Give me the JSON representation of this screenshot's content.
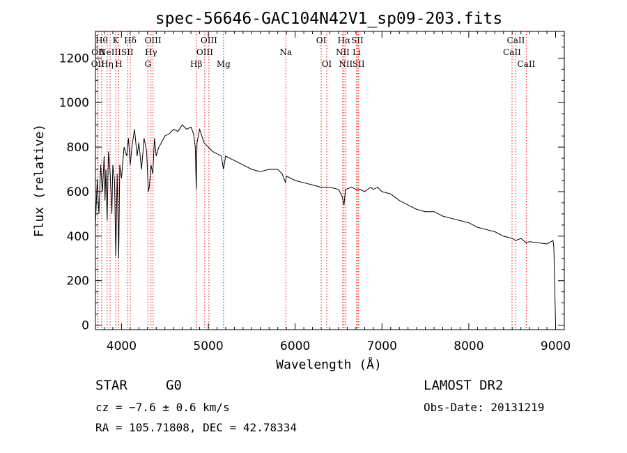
{
  "chart_data": {
    "type": "line",
    "title": "spec-56646-GAC104N42V1_sp09-203.fits",
    "xlabel": "Wavelength (Å)",
    "ylabel": "Flux (relative)",
    "xlim": [
      3700,
      9100
    ],
    "ylim": [
      -20,
      1320
    ],
    "xticks": [
      4000,
      5000,
      6000,
      7000,
      8000,
      9000
    ],
    "yticks": [
      0,
      200,
      400,
      600,
      800,
      1000,
      1200
    ],
    "grid": false,
    "series": [
      {
        "x": [
          3700,
          3720,
          3740,
          3760,
          3780,
          3800,
          3810,
          3820,
          3835,
          3850,
          3870,
          3889,
          3900,
          3920,
          3934,
          3950,
          3968,
          3980,
          4000,
          4030,
          4060,
          4080,
          4101,
          4120,
          4150,
          4180,
          4200,
          4230,
          4260,
          4290,
          4310,
          4320,
          4340,
          4360,
          4380,
          4400,
          4430,
          4460,
          4500,
          4550,
          4600,
          4650,
          4700,
          4750,
          4800,
          4830,
          4850,
          4861,
          4870,
          4900,
          4950,
          5000,
          5050,
          5100,
          5150,
          5175,
          5200,
          5300,
          5400,
          5500,
          5600,
          5700,
          5800,
          5850,
          5890,
          5900,
          6000,
          6100,
          6200,
          6300,
          6400,
          6500,
          6540,
          6563,
          6580,
          6650,
          6700,
          6750,
          6800,
          6870,
          6900,
          6950,
          7000,
          7100,
          7200,
          7300,
          7400,
          7500,
          7600,
          7700,
          7800,
          7900,
          8000,
          8100,
          8200,
          8300,
          8400,
          8498,
          8542,
          8600,
          8662,
          8700,
          8800,
          8900,
          8970,
          8980,
          8990,
          9000
        ],
        "y": [
          450,
          650,
          500,
          720,
          600,
          760,
          560,
          700,
          470,
          780,
          680,
          500,
          720,
          650,
          310,
          680,
          300,
          720,
          660,
          800,
          760,
          840,
          720,
          800,
          880,
          760,
          820,
          700,
          840,
          780,
          600,
          620,
          720,
          680,
          840,
          760,
          800,
          820,
          850,
          860,
          880,
          870,
          900,
          880,
          890,
          860,
          800,
          610,
          820,
          880,
          820,
          800,
          780,
          770,
          760,
          700,
          760,
          740,
          720,
          700,
          690,
          700,
          700,
          680,
          640,
          670,
          650,
          640,
          630,
          620,
          620,
          610,
          580,
          540,
          610,
          620,
          610,
          610,
          600,
          620,
          610,
          620,
          600,
          590,
          560,
          540,
          520,
          510,
          510,
          490,
          480,
          470,
          460,
          440,
          430,
          420,
          400,
          390,
          380,
          390,
          370,
          375,
          370,
          365,
          380,
          350,
          170,
          0
        ]
      }
    ],
    "line_markers": [
      {
        "wl": 3727,
        "label": "OII",
        "row": 2
      },
      {
        "wl": 3730,
        "label": "OII",
        "row": 1
      },
      {
        "wl": 3771,
        "label": "Hθ",
        "row": 0
      },
      {
        "wl": 3835,
        "label": "Hη",
        "row": 2
      },
      {
        "wl": 3869,
        "label": "NeIII",
        "row": 1
      },
      {
        "wl": 3934,
        "label": "K",
        "row": 0
      },
      {
        "wl": 3968,
        "label": "H",
        "row": 2
      },
      {
        "wl": 4068,
        "label": "SII",
        "row": 1
      },
      {
        "wl": 4101,
        "label": "Hδ",
        "row": 0
      },
      {
        "wl": 4304,
        "label": "G",
        "row": 2
      },
      {
        "wl": 4340,
        "label": "Hγ",
        "row": 1
      },
      {
        "wl": 4363,
        "label": "OIII",
        "row": 0
      },
      {
        "wl": 4861,
        "label": "Hβ",
        "row": 2
      },
      {
        "wl": 4959,
        "label": "OIII",
        "row": 1
      },
      {
        "wl": 5007,
        "label": "OIII",
        "row": 0
      },
      {
        "wl": 5175,
        "label": "Mg",
        "row": 2
      },
      {
        "wl": 5893,
        "label": "Na",
        "row": 1
      },
      {
        "wl": 6300,
        "label": "OI",
        "row": 0
      },
      {
        "wl": 6364,
        "label": "OI",
        "row": 2
      },
      {
        "wl": 6548,
        "label": "NII",
        "row": 1
      },
      {
        "wl": 6563,
        "label": "Hα",
        "row": 0
      },
      {
        "wl": 6583,
        "label": "NII",
        "row": 2
      },
      {
        "wl": 6708,
        "label": "Li",
        "row": 1
      },
      {
        "wl": 6716,
        "label": "SII",
        "row": 0
      },
      {
        "wl": 6731,
        "label": "SII",
        "row": 2
      },
      {
        "wl": 8498,
        "label": "CaII",
        "row": 1
      },
      {
        "wl": 8542,
        "label": "CaII",
        "row": 0
      },
      {
        "wl": 8662,
        "label": "CaII",
        "row": 2
      }
    ]
  },
  "info": {
    "object_type": "STAR",
    "subclass": "G0",
    "cz": "cz = −7.6 ± 0.6 km/s",
    "coords": "RA = 105.71808, DEC =  42.78334",
    "survey": "LAMOST DR2",
    "obs_date": "Obs-Date: 20131219"
  },
  "colors": {
    "spectrum": "#000000",
    "line_marker": "#ff0000",
    "axes": "#000000"
  }
}
